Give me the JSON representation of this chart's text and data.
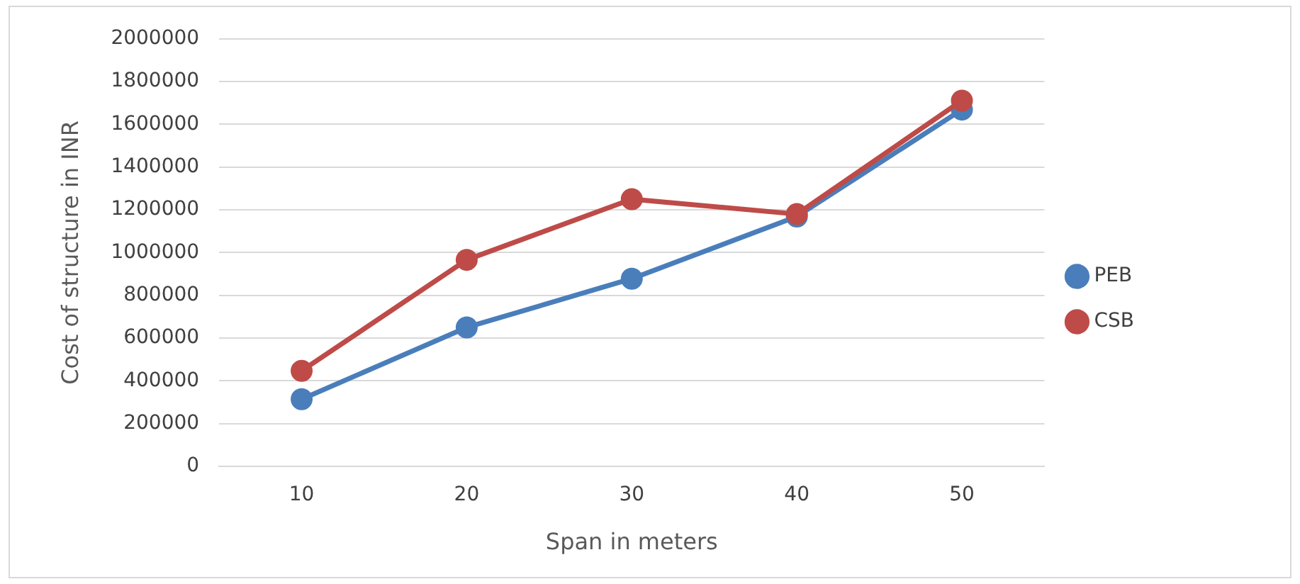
{
  "chart_data": {
    "type": "line",
    "xlabel": "Span in meters",
    "ylabel": "Cost of structure in INR",
    "categories": [
      "10",
      "20",
      "30",
      "40",
      "50"
    ],
    "series": [
      {
        "name": "PEB",
        "color": "#4a7ebb",
        "values": [
          314000,
          650000,
          878000,
          1169000,
          1669000
        ]
      },
      {
        "name": "CSB",
        "color": "#be4b48",
        "values": [
          447000,
          966000,
          1250000,
          1180000,
          1711000
        ]
      }
    ],
    "ylim": [
      0,
      2000000
    ],
    "yticks": [
      0,
      200000,
      400000,
      600000,
      800000,
      1000000,
      1200000,
      1400000,
      1600000,
      1800000,
      2000000
    ],
    "grid": "y",
    "legend": "right",
    "marker": "circle",
    "line_style": "solid"
  }
}
